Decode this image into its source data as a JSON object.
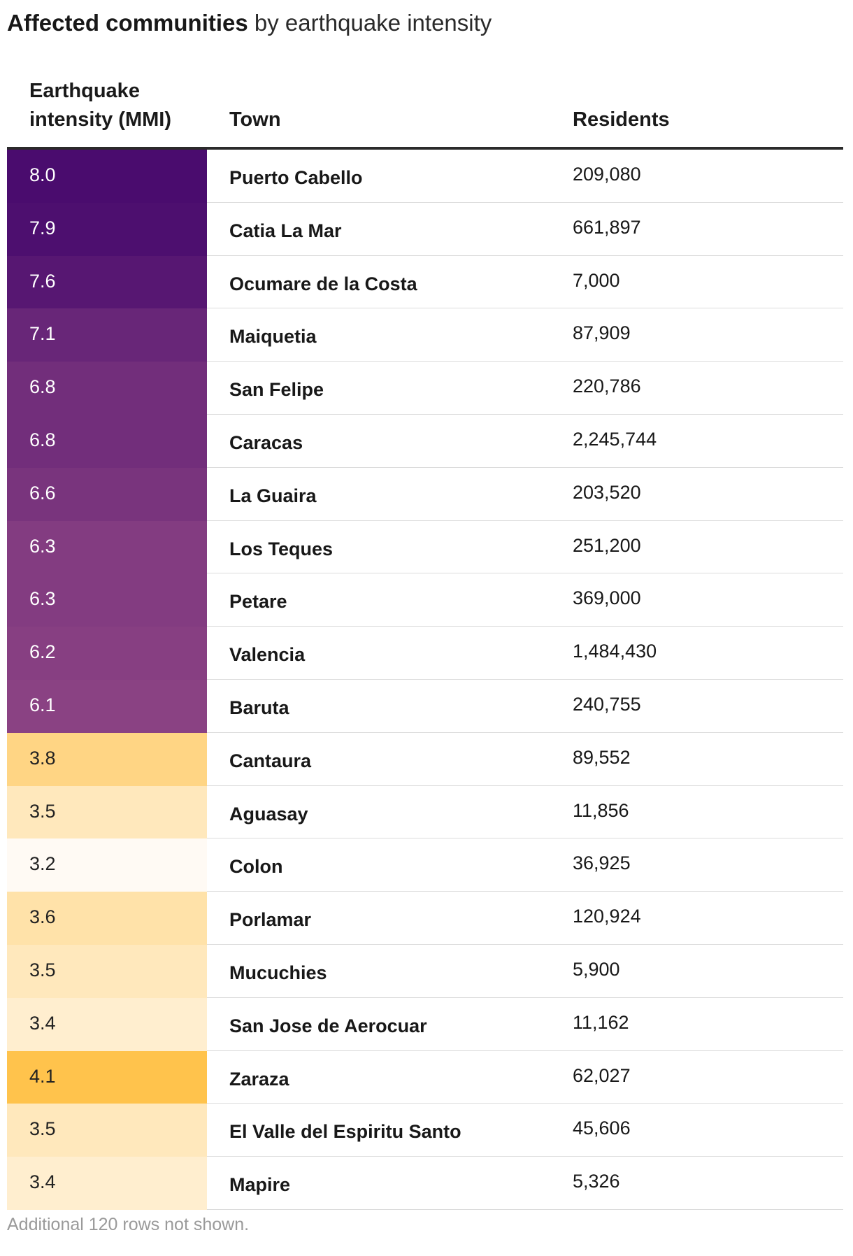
{
  "header": {
    "title_strong": "Affected communities",
    "title_rest": " by earthquake intensity"
  },
  "columns": {
    "intensity": "Earthquake intensity (MMI)",
    "town": "Town",
    "residents": "Residents"
  },
  "footer": {
    "note": "Additional 120 rows not shown."
  },
  "colors": {
    "purple_high": "#4a0c6e",
    "purple_low": "#8a4283",
    "amber_high": "#ffc34c",
    "amber_low": "#fffaf4",
    "text_on_dark": "#ffffff",
    "text_on_light": "#222222"
  },
  "chart_data": {
    "type": "table",
    "columns": [
      "Earthquake intensity (MMI)",
      "Town",
      "Residents"
    ],
    "rows": [
      {
        "mmi": "8.0",
        "town": "Puerto Cabello",
        "residents": "209,080"
      },
      {
        "mmi": "7.9",
        "town": "Catia La Mar",
        "residents": "661,897"
      },
      {
        "mmi": "7.6",
        "town": "Ocumare de la Costa",
        "residents": "7,000"
      },
      {
        "mmi": "7.1",
        "town": "Maiquetia",
        "residents": "87,909"
      },
      {
        "mmi": "6.8",
        "town": "San Felipe",
        "residents": "220,786"
      },
      {
        "mmi": "6.8",
        "town": "Caracas",
        "residents": "2,245,744"
      },
      {
        "mmi": "6.6",
        "town": "La Guaira",
        "residents": "203,520"
      },
      {
        "mmi": "6.3",
        "town": "Los Teques",
        "residents": "251,200"
      },
      {
        "mmi": "6.3",
        "town": "Petare",
        "residents": "369,000"
      },
      {
        "mmi": "6.2",
        "town": "Valencia",
        "residents": "1,484,430"
      },
      {
        "mmi": "6.1",
        "town": "Baruta",
        "residents": "240,755"
      },
      {
        "mmi": "3.8",
        "town": "Cantaura",
        "residents": "89,552"
      },
      {
        "mmi": "3.5",
        "town": "Aguasay",
        "residents": "11,856"
      },
      {
        "mmi": "3.2",
        "town": "Colon",
        "residents": "36,925"
      },
      {
        "mmi": "3.6",
        "town": "Porlamar",
        "residents": "120,924"
      },
      {
        "mmi": "3.5",
        "town": "Mucuchies",
        "residents": "5,900"
      },
      {
        "mmi": "3.4",
        "town": "San Jose de Aerocuar",
        "residents": "11,162"
      },
      {
        "mmi": "4.1",
        "town": "Zaraza",
        "residents": "62,027"
      },
      {
        "mmi": "3.5",
        "town": "El Valle del Espiritu Santo",
        "residents": "45,606"
      },
      {
        "mmi": "3.4",
        "town": "Mapire",
        "residents": "5,326"
      }
    ]
  }
}
